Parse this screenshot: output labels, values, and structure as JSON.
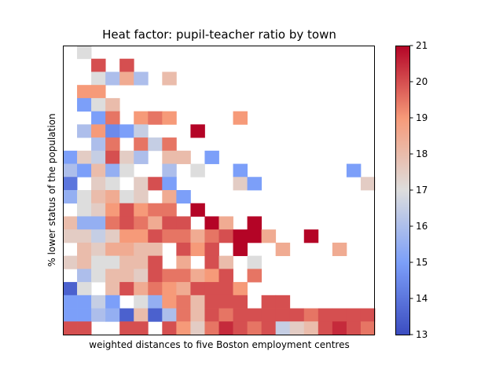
{
  "chart_data": {
    "type": "heatmap",
    "title": "Heat factor: pupil-teacher ratio by town",
    "xlabel": "weighted distances to five Boston employment centres",
    "ylabel": "% lower status of the population",
    "colorbar": {
      "colormap": "coolwarm",
      "min": 13,
      "max": 21,
      "ticks": [
        13,
        14,
        15,
        16,
        17,
        18,
        19,
        20,
        21
      ]
    },
    "x_ticks": [],
    "y_ticks": [],
    "n_cols": 22,
    "n_rows": 22,
    "note_cells": "cells listed top row first; null = no data",
    "cells": [
      [
        null,
        17,
        null,
        null,
        null,
        null,
        null,
        null,
        null,
        null,
        null,
        null,
        null,
        null,
        null,
        null,
        null,
        null,
        null,
        null,
        null,
        null
      ],
      [
        null,
        null,
        20,
        null,
        20,
        null,
        null,
        null,
        null,
        null,
        null,
        null,
        null,
        null,
        null,
        null,
        null,
        null,
        null,
        null,
        null,
        null
      ],
      [
        null,
        null,
        17,
        16,
        18.5,
        16,
        null,
        18,
        null,
        null,
        null,
        null,
        null,
        null,
        null,
        null,
        null,
        null,
        null,
        null,
        null,
        null
      ],
      [
        null,
        19,
        19,
        null,
        null,
        null,
        null,
        null,
        null,
        null,
        null,
        null,
        null,
        null,
        null,
        null,
        null,
        null,
        null,
        null,
        null,
        null
      ],
      [
        null,
        15,
        17,
        18,
        null,
        null,
        null,
        null,
        null,
        null,
        null,
        null,
        null,
        null,
        null,
        null,
        null,
        null,
        null,
        null,
        null,
        null
      ],
      [
        null,
        null,
        15,
        19.5,
        null,
        19,
        19.5,
        19,
        null,
        null,
        null,
        null,
        19,
        null,
        null,
        null,
        null,
        null,
        null,
        null,
        null,
        null
      ],
      [
        null,
        16,
        19,
        14.5,
        15,
        16.5,
        null,
        null,
        null,
        21,
        null,
        null,
        null,
        null,
        null,
        null,
        null,
        null,
        null,
        null,
        null,
        null
      ],
      [
        null,
        null,
        16,
        19.5,
        null,
        19.5,
        16.5,
        19.5,
        null,
        null,
        null,
        null,
        null,
        null,
        null,
        null,
        null,
        null,
        null,
        null,
        null,
        null
      ],
      [
        15,
        17.5,
        16.5,
        20,
        17.5,
        16,
        null,
        18,
        18,
        null,
        15,
        null,
        null,
        null,
        null,
        null,
        null,
        null,
        null,
        null,
        null,
        null
      ],
      [
        16,
        15,
        18,
        15.5,
        17,
        null,
        null,
        16,
        null,
        17,
        null,
        null,
        15,
        null,
        null,
        null,
        null,
        null,
        null,
        null,
        15,
        null
      ],
      [
        14,
        null,
        17.5,
        17,
        null,
        17.5,
        20,
        15,
        null,
        null,
        null,
        null,
        17.5,
        15,
        null,
        null,
        null,
        null,
        null,
        null,
        null,
        17.5
      ],
      [
        15.5,
        17,
        18,
        18.5,
        17,
        17.5,
        null,
        18.5,
        15,
        null,
        null,
        null,
        null,
        null,
        null,
        null,
        null,
        null,
        null,
        null,
        null,
        null
      ],
      [
        null,
        17,
        17.5,
        19,
        20,
        19,
        19.5,
        19.5,
        null,
        21,
        null,
        null,
        null,
        null,
        null,
        null,
        null,
        null,
        null,
        null,
        null,
        null
      ],
      [
        18,
        15.5,
        15.5,
        19.5,
        20,
        19.5,
        18.5,
        20,
        20,
        null,
        21,
        18.5,
        null,
        21,
        null,
        null,
        null,
        null,
        null,
        null,
        null,
        null
      ],
      [
        17.5,
        17.5,
        16.5,
        17.5,
        19,
        19,
        20,
        19.5,
        19.5,
        18.5,
        19.5,
        20,
        21,
        21,
        18.5,
        null,
        null,
        21,
        null,
        null,
        null,
        null
      ],
      [
        null,
        18,
        17.5,
        18.5,
        18.5,
        18,
        18,
        null,
        20,
        19,
        20,
        null,
        21,
        null,
        null,
        18.5,
        null,
        null,
        null,
        18.5,
        null,
        null
      ],
      [
        17.5,
        18,
        17,
        17,
        18,
        18,
        20,
        null,
        18.5,
        null,
        20,
        18,
        null,
        17,
        null,
        null,
        null,
        null,
        null,
        null,
        null,
        null
      ],
      [
        null,
        16,
        17,
        18,
        18,
        17.5,
        20,
        19.5,
        19.5,
        18.5,
        19,
        20,
        null,
        19.5,
        null,
        null,
        null,
        null,
        null,
        null,
        null,
        null
      ],
      [
        13.5,
        17,
        null,
        18,
        20,
        18.5,
        19.5,
        19,
        18.5,
        20,
        20,
        20,
        19,
        null,
        null,
        null,
        null,
        null,
        null,
        null,
        null,
        null
      ],
      [
        15,
        15,
        16.5,
        15,
        null,
        17,
        15.5,
        19,
        19.5,
        18,
        20,
        20,
        20,
        null,
        20,
        20,
        null,
        null,
        null,
        null,
        null,
        null
      ],
      [
        15,
        15,
        16,
        15.5,
        13.5,
        18,
        13.5,
        16,
        19.5,
        18,
        20,
        19.5,
        20,
        20,
        20,
        20,
        20,
        19.5,
        20,
        20,
        20,
        20
      ],
      [
        20,
        20,
        null,
        null,
        20,
        20,
        null,
        20,
        19,
        17.5,
        19.5,
        20.5,
        20,
        19.5,
        20,
        16.5,
        17.5,
        18,
        20,
        20.5,
        20,
        19.5
      ]
    ]
  }
}
